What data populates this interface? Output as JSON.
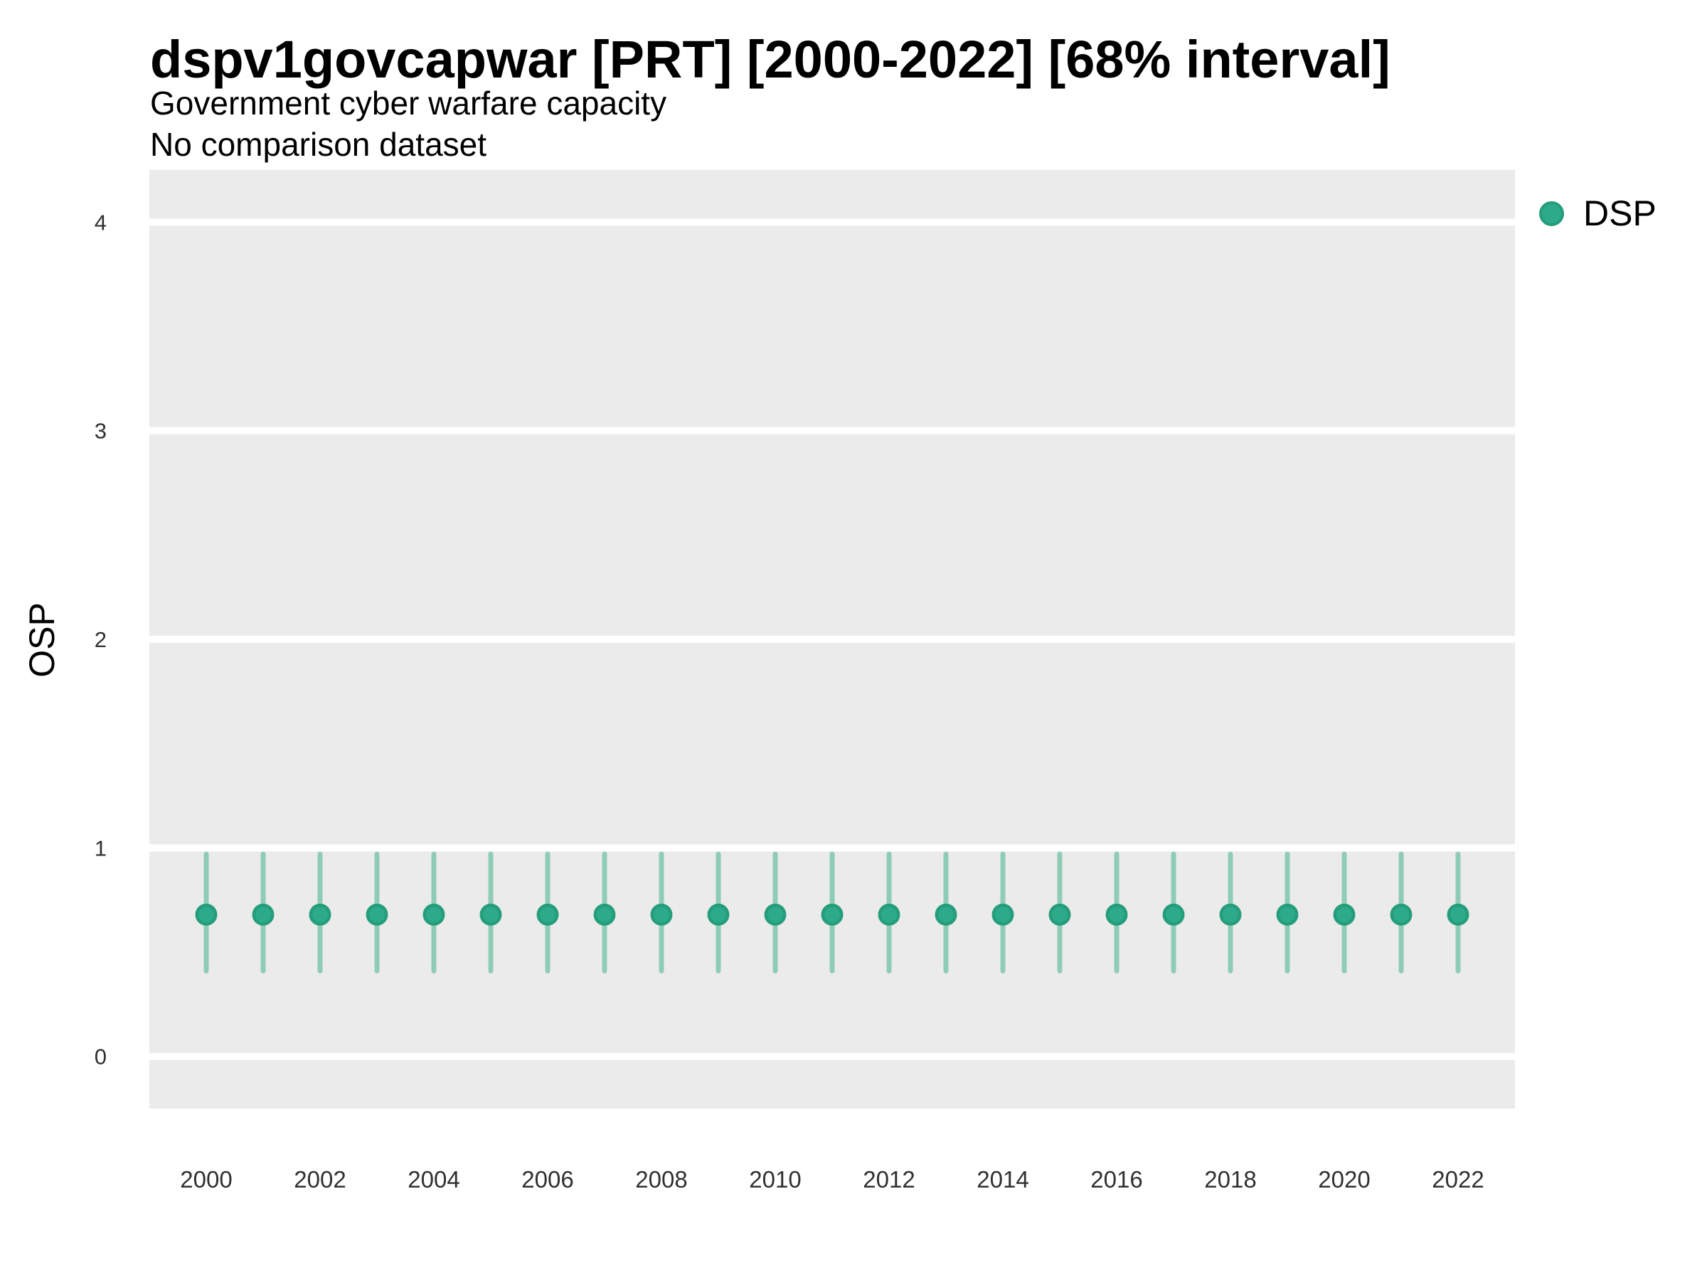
{
  "header": {
    "title": "dspv1govcapwar [PRT] [2000-2022] [68% interval]",
    "subtitle": "Government cyber warfare capacity",
    "note": "No comparison dataset"
  },
  "legend": {
    "position": "right-top",
    "items": [
      {
        "label": "DSP",
        "marker": "circle-icon",
        "color": "#2caa89",
        "stroke": "#259d7b"
      }
    ]
  },
  "chart_data": {
    "type": "scatter",
    "title": "dspv1govcapwar [PRT] [2000-2022] [68% interval]",
    "subtitle": "Government cyber warfare capacity",
    "note": "No comparison dataset",
    "interval": "68%",
    "xlabel": "",
    "ylabel": "OSP",
    "x": [
      2000,
      2001,
      2002,
      2003,
      2004,
      2005,
      2006,
      2007,
      2008,
      2009,
      2010,
      2011,
      2012,
      2013,
      2014,
      2015,
      2016,
      2017,
      2018,
      2019,
      2020,
      2021,
      2022
    ],
    "series": [
      {
        "name": "DSP",
        "estimate": [
          0.68,
          0.68,
          0.68,
          0.68,
          0.68,
          0.68,
          0.68,
          0.68,
          0.68,
          0.68,
          0.68,
          0.68,
          0.68,
          0.68,
          0.68,
          0.68,
          0.68,
          0.68,
          0.68,
          0.68,
          0.68,
          0.68,
          0.68
        ],
        "lower": [
          0.41,
          0.41,
          0.41,
          0.41,
          0.41,
          0.41,
          0.41,
          0.41,
          0.41,
          0.41,
          0.41,
          0.41,
          0.41,
          0.41,
          0.41,
          0.41,
          0.41,
          0.41,
          0.41,
          0.41,
          0.41,
          0.41,
          0.41
        ],
        "upper": [
          0.97,
          0.97,
          0.97,
          0.97,
          0.97,
          0.97,
          0.97,
          0.97,
          0.97,
          0.97,
          0.97,
          0.97,
          0.97,
          0.97,
          0.97,
          0.97,
          0.97,
          0.97,
          0.97,
          0.97,
          0.97,
          0.97,
          0.97
        ]
      }
    ],
    "xticks": [
      2000,
      2002,
      2004,
      2006,
      2008,
      2010,
      2012,
      2014,
      2016,
      2018,
      2020,
      2022
    ],
    "yticks": [
      0,
      1,
      2,
      3,
      4
    ],
    "xlim": [
      1999,
      2023
    ],
    "ylim": [
      -0.25,
      4.25
    ],
    "grid": "horizontal-major-only",
    "legend_position": "right-top",
    "colors": {
      "point": "#2caa89",
      "point_stroke": "#259d7b",
      "interval": "#8fccb5",
      "panel_bg": "#ebebeb",
      "grid": "#ffffff",
      "title_text": "#000000",
      "tick_text": "#303030"
    }
  }
}
